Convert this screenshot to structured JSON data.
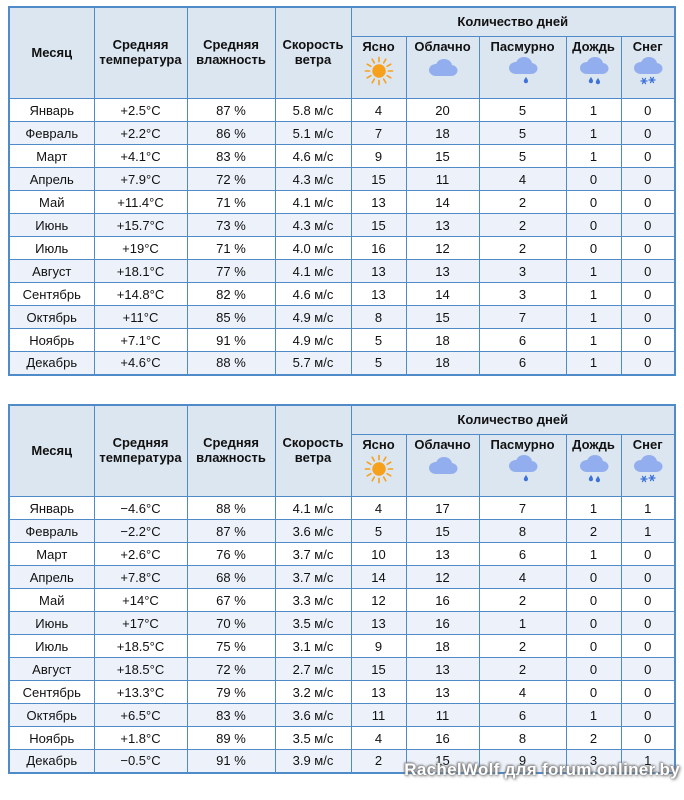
{
  "header": {
    "month": "Месяц",
    "avg_temperature": "Средняя температура",
    "avg_humidity": "Средняя влажность",
    "wind_speed": "Скорость ветра",
    "days_group": "Количество дней",
    "day_types": [
      {
        "label": "Ясно",
        "icon": "sun-icon"
      },
      {
        "label": "Облачно",
        "icon": "cloud-icon"
      },
      {
        "label": "Пасмурно",
        "icon": "cloud-drop-icon"
      },
      {
        "label": "Дождь",
        "icon": "cloud-rain-icon"
      },
      {
        "label": "Снег",
        "icon": "cloud-snow-icon"
      }
    ]
  },
  "chart_data": [
    {
      "type": "table",
      "title": "Климатическая таблица 1",
      "columns": [
        "Месяц",
        "Средняя температура",
        "Средняя влажность",
        "Скорость ветра",
        "Ясно",
        "Облачно",
        "Пасмурно",
        "Дождь",
        "Снег"
      ],
      "rows": [
        [
          "Январь",
          "+2.5°C",
          "87 %",
          "5.8 м/с",
          "4",
          "20",
          "5",
          "1",
          "0"
        ],
        [
          "Февраль",
          "+2.2°C",
          "86 %",
          "5.1 м/с",
          "7",
          "18",
          "5",
          "1",
          "0"
        ],
        [
          "Март",
          "+4.1°C",
          "83 %",
          "4.6 м/с",
          "9",
          "15",
          "5",
          "1",
          "0"
        ],
        [
          "Апрель",
          "+7.9°C",
          "72 %",
          "4.3 м/с",
          "15",
          "11",
          "4",
          "0",
          "0"
        ],
        [
          "Май",
          "+11.4°C",
          "71 %",
          "4.1 м/с",
          "13",
          "14",
          "2",
          "0",
          "0"
        ],
        [
          "Июнь",
          "+15.7°C",
          "73 %",
          "4.3 м/с",
          "15",
          "13",
          "2",
          "0",
          "0"
        ],
        [
          "Июль",
          "+19°C",
          "71 %",
          "4.0 м/с",
          "16",
          "12",
          "2",
          "0",
          "0"
        ],
        [
          "Август",
          "+18.1°C",
          "77 %",
          "4.1 м/с",
          "13",
          "13",
          "3",
          "1",
          "0"
        ],
        [
          "Сентябрь",
          "+14.8°C",
          "82 %",
          "4.6 м/с",
          "13",
          "14",
          "3",
          "1",
          "0"
        ],
        [
          "Октябрь",
          "+11°C",
          "85 %",
          "4.9 м/с",
          "8",
          "15",
          "7",
          "1",
          "0"
        ],
        [
          "Ноябрь",
          "+7.1°C",
          "91 %",
          "4.9 м/с",
          "5",
          "18",
          "6",
          "1",
          "0"
        ],
        [
          "Декабрь",
          "+4.6°C",
          "88 %",
          "5.7 м/с",
          "5",
          "18",
          "6",
          "1",
          "0"
        ]
      ]
    },
    {
      "type": "table",
      "title": "Климатическая таблица 2",
      "columns": [
        "Месяц",
        "Средняя температура",
        "Средняя влажность",
        "Скорость ветра",
        "Ясно",
        "Облачно",
        "Пасмурно",
        "Дождь",
        "Снег"
      ],
      "rows": [
        [
          "Январь",
          "−4.6°C",
          "88 %",
          "4.1 м/с",
          "4",
          "17",
          "7",
          "1",
          "1"
        ],
        [
          "Февраль",
          "−2.2°C",
          "87 %",
          "3.6 м/с",
          "5",
          "15",
          "8",
          "2",
          "1"
        ],
        [
          "Март",
          "+2.6°C",
          "76 %",
          "3.7 м/с",
          "10",
          "13",
          "6",
          "1",
          "0"
        ],
        [
          "Апрель",
          "+7.8°C",
          "68 %",
          "3.7 м/с",
          "14",
          "12",
          "4",
          "0",
          "0"
        ],
        [
          "Май",
          "+14°C",
          "67 %",
          "3.3 м/с",
          "12",
          "16",
          "2",
          "0",
          "0"
        ],
        [
          "Июнь",
          "+17°C",
          "70 %",
          "3.5 м/с",
          "13",
          "16",
          "1",
          "0",
          "0"
        ],
        [
          "Июль",
          "+18.5°C",
          "75 %",
          "3.1 м/с",
          "9",
          "18",
          "2",
          "0",
          "0"
        ],
        [
          "Август",
          "+18.5°C",
          "72 %",
          "2.7 м/с",
          "15",
          "13",
          "2",
          "0",
          "0"
        ],
        [
          "Сентябрь",
          "+13.3°C",
          "79 %",
          "3.2 м/с",
          "13",
          "13",
          "4",
          "0",
          "0"
        ],
        [
          "Октябрь",
          "+6.5°C",
          "83 %",
          "3.6 м/с",
          "11",
          "11",
          "6",
          "1",
          "0"
        ],
        [
          "Ноябрь",
          "+1.8°C",
          "89 %",
          "3.5 м/с",
          "4",
          "16",
          "8",
          "2",
          "0"
        ],
        [
          "Декабрь",
          "−0.5°C",
          "91 %",
          "3.9 м/с",
          "2",
          "15",
          "9",
          "3",
          "1"
        ]
      ]
    }
  ],
  "watermark": "RachelWolf для forum.onliner.by",
  "colors": {
    "border": "#4f8bc9",
    "header_bg": "#dce6f1",
    "stripe_bg": "#edf2fa",
    "sun": "#f7a01b",
    "cloud": "#92aeee",
    "drop": "#3f72d8",
    "text": "#111111",
    "watermark_text": "#ffffff"
  }
}
